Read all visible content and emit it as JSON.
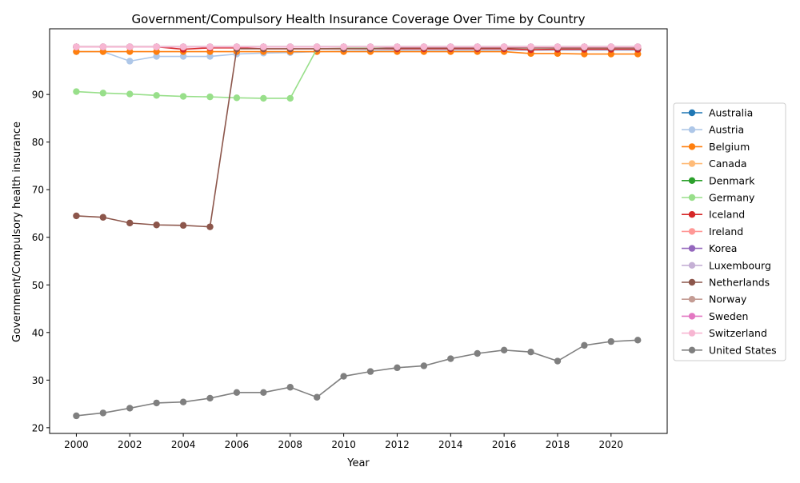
{
  "chart_data": {
    "type": "line",
    "title": "Government/Compulsory Health Insurance Coverage Over Time by Country",
    "xlabel": "Year",
    "ylabel": "Government/Compulsory health insurance",
    "x": [
      2000,
      2001,
      2002,
      2003,
      2004,
      2005,
      2006,
      2007,
      2008,
      2009,
      2010,
      2011,
      2012,
      2013,
      2014,
      2015,
      2016,
      2017,
      2018,
      2019,
      2020,
      2021
    ],
    "xticks": [
      "2000",
      "2002",
      "2004",
      "2006",
      "2008",
      "2010",
      "2012",
      "2014",
      "2016",
      "2018",
      "2020"
    ],
    "yticks": [
      "20",
      "30",
      "40",
      "50",
      "60",
      "70",
      "80",
      "90"
    ],
    "xlim": [
      1999,
      2022.1
    ],
    "ylim": [
      18.8,
      103.8
    ],
    "grid": false,
    "legend_position": "right",
    "series": [
      {
        "name": "Australia",
        "color": "#1f77b4",
        "values": [
          100,
          100,
          100,
          100,
          100,
          100,
          100,
          100,
          100,
          100,
          100,
          100,
          100,
          100,
          100,
          100,
          100,
          100,
          100,
          100,
          100,
          100
        ]
      },
      {
        "name": "Austria",
        "color": "#aec7e8",
        "values": [
          99,
          99,
          97,
          98,
          98,
          98,
          98.5,
          98.7,
          98.8,
          99,
          99.1,
          99.2,
          99.3,
          99.3,
          99.3,
          99.3,
          99.3,
          99.3,
          99.3,
          99.3,
          99.3,
          99.3
        ]
      },
      {
        "name": "Belgium",
        "color": "#ff7f0e",
        "values": [
          99,
          99,
          99,
          99,
          99,
          99,
          99,
          99,
          99,
          99,
          99,
          99,
          99,
          99,
          99,
          99,
          99,
          98.6,
          98.6,
          98.5,
          98.5,
          98.5
        ]
      },
      {
        "name": "Canada",
        "color": "#ffbb78",
        "values": [
          100,
          100,
          100,
          100,
          100,
          100,
          100,
          100,
          100,
          100,
          100,
          100,
          100,
          100,
          100,
          100,
          100,
          100,
          100,
          100,
          100,
          100
        ]
      },
      {
        "name": "Denmark",
        "color": "#2ca02c",
        "values": [
          100,
          100,
          100,
          100,
          100,
          100,
          100,
          100,
          100,
          100,
          100,
          100,
          100,
          100,
          100,
          100,
          100,
          100,
          100,
          100,
          100,
          100
        ]
      },
      {
        "name": "Germany",
        "color": "#98df8a",
        "values": [
          90.6,
          90.3,
          90.1,
          89.8,
          89.6,
          89.5,
          89.3,
          89.2,
          89.2,
          99.6,
          99.7,
          99.8,
          99.8,
          99.8,
          99.8,
          99.8,
          99.8,
          99.8,
          99.8,
          99.8,
          99.8,
          99.8
        ]
      },
      {
        "name": "Iceland",
        "color": "#d62728",
        "values": [
          100,
          100,
          100,
          100,
          99.5,
          99.8,
          99.8,
          99.6,
          99.6,
          99.6,
          99.6,
          99.6,
          99.6,
          99.6,
          99.6,
          99.6,
          99.6,
          99.4,
          99.5,
          99.5,
          99.5,
          99.5
        ]
      },
      {
        "name": "Ireland",
        "color": "#ff9896",
        "values": [
          100,
          100,
          100,
          100,
          100,
          100,
          100,
          100,
          100,
          100,
          100,
          100,
          100,
          100,
          100,
          100,
          100,
          100,
          100,
          100,
          100,
          100
        ]
      },
      {
        "name": "Korea",
        "color": "#9467bd",
        "values": [
          100,
          100,
          100,
          100,
          100,
          100,
          100,
          100,
          100,
          100,
          100,
          100,
          100,
          100,
          100,
          100,
          100,
          100,
          100,
          100,
          100,
          100
        ]
      },
      {
        "name": "Luxembourg",
        "color": "#c5b0d5",
        "values": [
          100,
          100,
          100,
          100,
          100,
          100,
          100,
          100,
          100,
          100,
          100,
          100,
          100,
          100,
          100,
          100,
          100,
          100,
          100,
          100,
          100,
          100
        ]
      },
      {
        "name": "Netherlands",
        "color": "#8c564b",
        "values": [
          64.5,
          64.2,
          63,
          62.6,
          62.5,
          62.2,
          99.6,
          99.6,
          99.6,
          99.6,
          99.6,
          99.6,
          99.8,
          99.8,
          99.8,
          99.8,
          99.8,
          99.8,
          99.8,
          99.8,
          99.8,
          99.8
        ]
      },
      {
        "name": "Norway",
        "color": "#c49c94",
        "values": [
          100,
          100,
          100,
          100,
          100,
          100,
          100,
          100,
          100,
          100,
          100,
          100,
          100,
          100,
          100,
          100,
          100,
          100,
          100,
          100,
          100,
          100
        ]
      },
      {
        "name": "Sweden",
        "color": "#e377c2",
        "values": [
          100,
          100,
          100,
          100,
          100,
          100,
          100,
          100,
          100,
          100,
          100,
          100,
          100,
          100,
          100,
          100,
          100,
          100,
          100,
          100,
          100,
          100
        ]
      },
      {
        "name": "Switzerland",
        "color": "#f7b6d2",
        "values": [
          100,
          100,
          100,
          100,
          100,
          100,
          100,
          100,
          100,
          100,
          100,
          100,
          100,
          100,
          100,
          100,
          100,
          100,
          100,
          100,
          100,
          100
        ]
      },
      {
        "name": "United States",
        "color": "#7f7f7f",
        "values": [
          22.5,
          23.1,
          24.1,
          25.2,
          25.4,
          26.2,
          27.4,
          27.4,
          28.5,
          26.4,
          30.8,
          31.8,
          32.6,
          33,
          34.5,
          35.6,
          36.3,
          35.9,
          34,
          37.3,
          38.1,
          38.4
        ]
      }
    ]
  }
}
